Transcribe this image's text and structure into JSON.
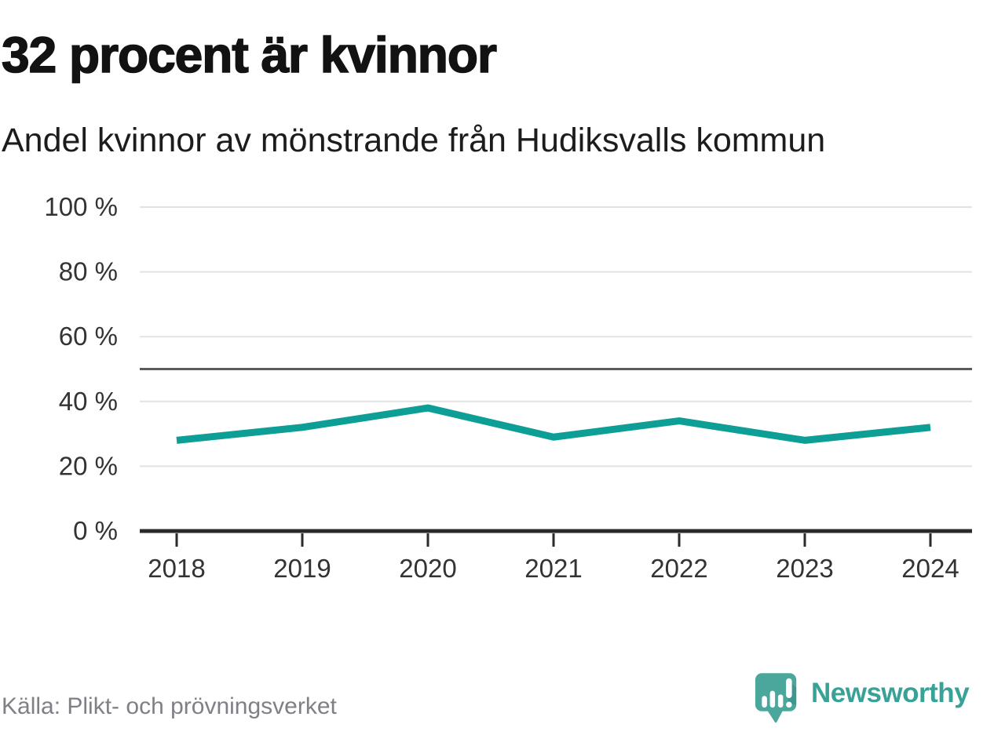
{
  "header": {
    "title": "32 procent är kvinnor",
    "subtitle": "Andel kvinnor av mönstrande från Hudiksvalls kommun"
  },
  "chart_data": {
    "type": "line",
    "title": "32 procent är kvinnor",
    "subtitle": "Andel kvinnor av mönstrande från Hudiksvalls kommun",
    "categories": [
      "2018",
      "2019",
      "2020",
      "2021",
      "2022",
      "2023",
      "2024"
    ],
    "series": [
      {
        "name": "Andel kvinnor av mönstrande",
        "values": [
          28,
          32,
          38,
          29,
          34,
          28,
          32
        ]
      }
    ],
    "unit": "%",
    "ylim": [
      0,
      100
    ],
    "yticks": [
      0,
      20,
      40,
      60,
      80,
      100
    ],
    "ytick_suffix": " %",
    "reference_line": 50,
    "grid": true,
    "legend_position": "none",
    "colors": {
      "line": "#0d9e96",
      "grid": "#e2e2e2",
      "reference": "#5a5a5f",
      "axis": "#2b2b2b",
      "tick_text": "#333333"
    }
  },
  "footer": {
    "source": "Källa: Plikt- och prövningsverket",
    "brand": "Newsworthy",
    "brand_color": "#38a296",
    "logo_bubble_color": "#4ba69c"
  }
}
